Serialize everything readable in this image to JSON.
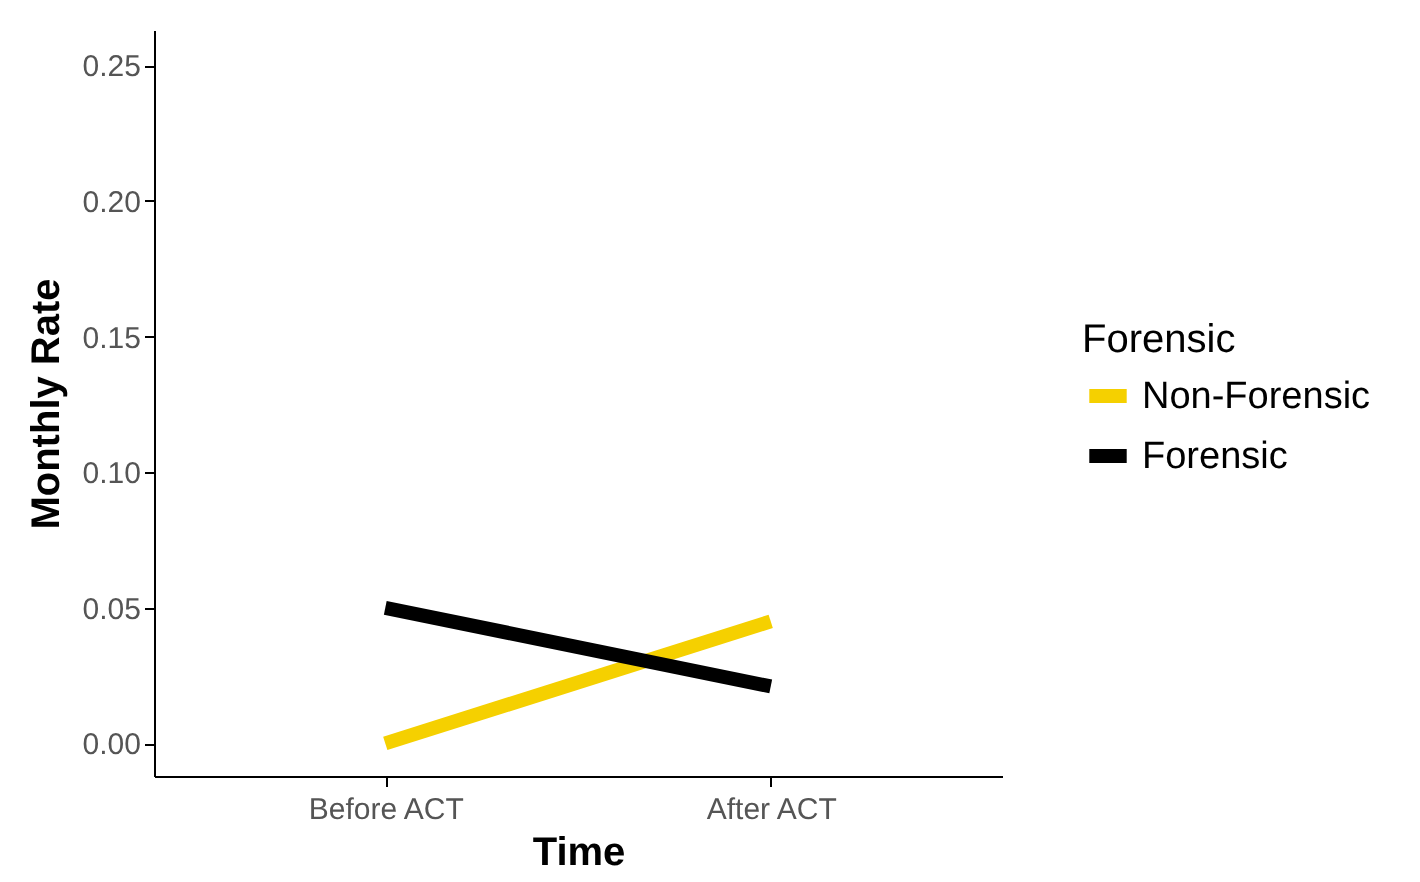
{
  "chart_data": {
    "type": "line",
    "xlabel": "Time",
    "ylabel": "Monthly Rate",
    "legend_title": "Forensic",
    "categories": [
      "Before ACT",
      "After ACT"
    ],
    "series": [
      {
        "name": "Non-Forensic",
        "color": "#f5d000",
        "values": [
          0.0,
          0.045
        ]
      },
      {
        "name": "Forensic",
        "color": "#000000",
        "values": [
          0.05,
          0.021
        ]
      }
    ],
    "ylim": [
      -0.012,
      0.263
    ],
    "yticks": [
      {
        "value": 0,
        "label": "0.00"
      },
      {
        "value": 0.05,
        "label": "0.05"
      },
      {
        "value": 0.1,
        "label": "0.10"
      },
      {
        "value": 0.15,
        "label": "0.15"
      },
      {
        "value": 0.2,
        "label": "0.20"
      },
      {
        "value": 0.25,
        "label": "0.25"
      }
    ],
    "grid": false,
    "legend": "right",
    "marker": "none",
    "line_style": "solid"
  }
}
